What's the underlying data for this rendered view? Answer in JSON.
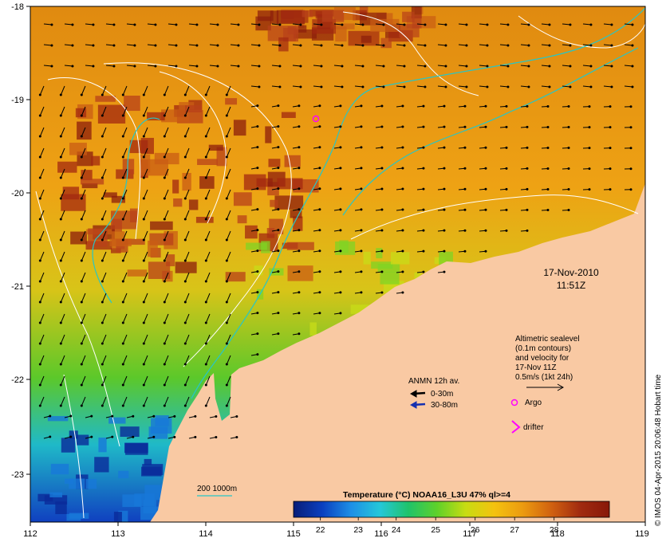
{
  "map": {
    "colors": {
      "land": "#f9c9a3",
      "frame": "#000000",
      "isobath": "#27c6c6",
      "contour": "#ffffff",
      "arrow_shallow": "#000000",
      "arrow_deep": "#1530b0",
      "argo": "#ff00ff",
      "drifter": "#ff00ff"
    },
    "x_axis": {
      "ticks": [
        "112",
        "113",
        "114",
        "115",
        "116",
        "117",
        "118",
        "119"
      ]
    },
    "y_axis": {
      "ticks": [
        "-18",
        "-19",
        "-20",
        "-21",
        "-22",
        "-23"
      ]
    },
    "date_line1": "17-Nov-2010",
    "date_line2": "11:51Z",
    "altimetry": {
      "line1": "Altimetric sealevel",
      "line2": "(0.1m contours)",
      "line3": "and velocity for",
      "line4": "17-Nov 11Z",
      "line5": "0.5m/s (1kt 24h)"
    },
    "anmn": {
      "title": "ANMN 12h av.",
      "shallow_label": "0-30m",
      "deep_label": "30-80m"
    },
    "argo_label": "Argo",
    "drifter_label": "drifter",
    "isobath_label": "200  1000m",
    "colorbar": {
      "title": "Temperature (°C) NOAA16_L3U 47% ql>=4",
      "ticks": [
        "22",
        "23",
        "24",
        "25",
        "26",
        "27",
        "28"
      ],
      "stops": [
        "#081d78",
        "#0a3fbf",
        "#1e8fe6",
        "#25c7d9",
        "#20c36a",
        "#5fd12a",
        "#c8dc12",
        "#f4c20f",
        "#eb9a10",
        "#d06010",
        "#a02a10",
        "#881808"
      ]
    },
    "credit": "© IMOS 04-Apr-2015 20:06:48 Hobart time"
  }
}
